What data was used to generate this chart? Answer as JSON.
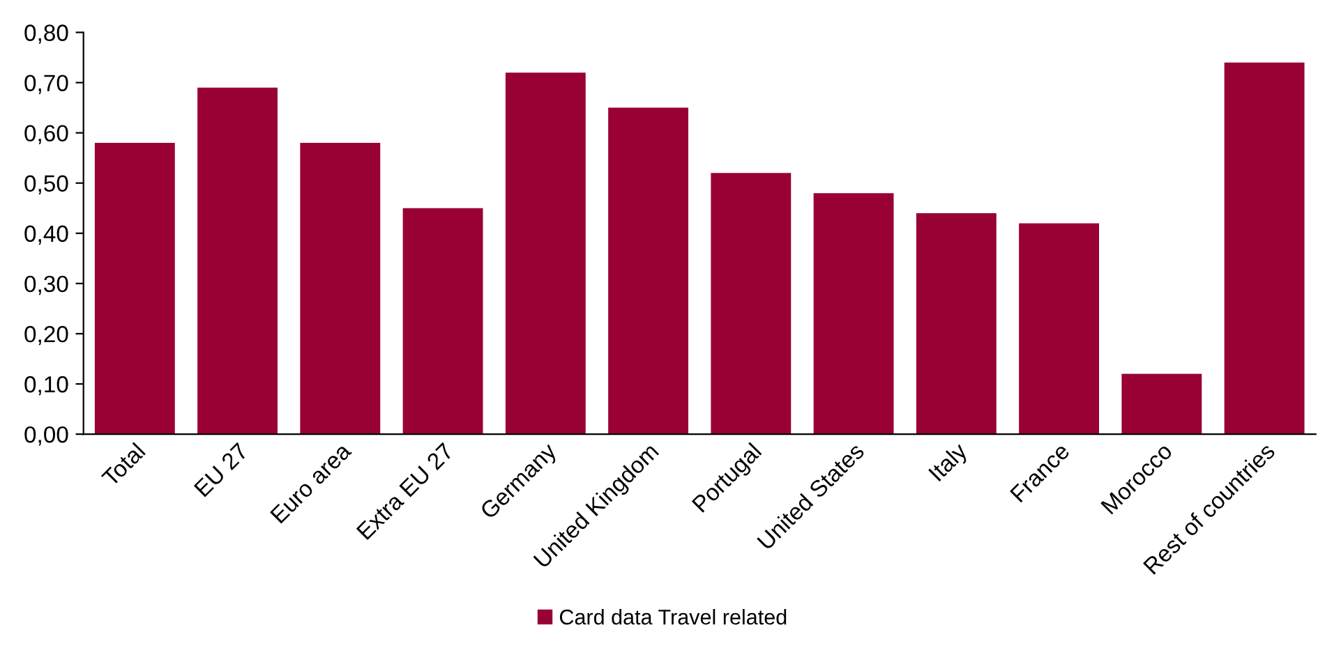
{
  "chart_data": {
    "type": "bar",
    "categories": [
      "Total",
      "EU 27",
      "Euro area",
      "Extra EU 27",
      "Germany",
      "United Kingdom",
      "Portugal",
      "United States",
      "Italy",
      "France",
      "Morocco",
      "Rest of countries"
    ],
    "series": [
      {
        "name": "Card data Travel related",
        "color": "#990033",
        "values": [
          0.58,
          0.69,
          0.58,
          0.45,
          0.72,
          0.65,
          0.52,
          0.48,
          0.44,
          0.42,
          0.12,
          0.74
        ]
      }
    ],
    "ylim": [
      0,
      0.8
    ],
    "yticks": [
      {
        "value": 0,
        "label": "0,00"
      },
      {
        "value": 0.1,
        "label": "0,10"
      },
      {
        "value": 0.2,
        "label": "0,20"
      },
      {
        "value": 0.3,
        "label": "0,30"
      },
      {
        "value": 0.4,
        "label": "0,40"
      },
      {
        "value": 0.5,
        "label": "0,50"
      },
      {
        "value": 0.6,
        "label": "0,60"
      },
      {
        "value": 0.7,
        "label": "0,70"
      },
      {
        "value": 0.8,
        "label": "0,80"
      }
    ],
    "grid": false,
    "legend": "bottom"
  }
}
